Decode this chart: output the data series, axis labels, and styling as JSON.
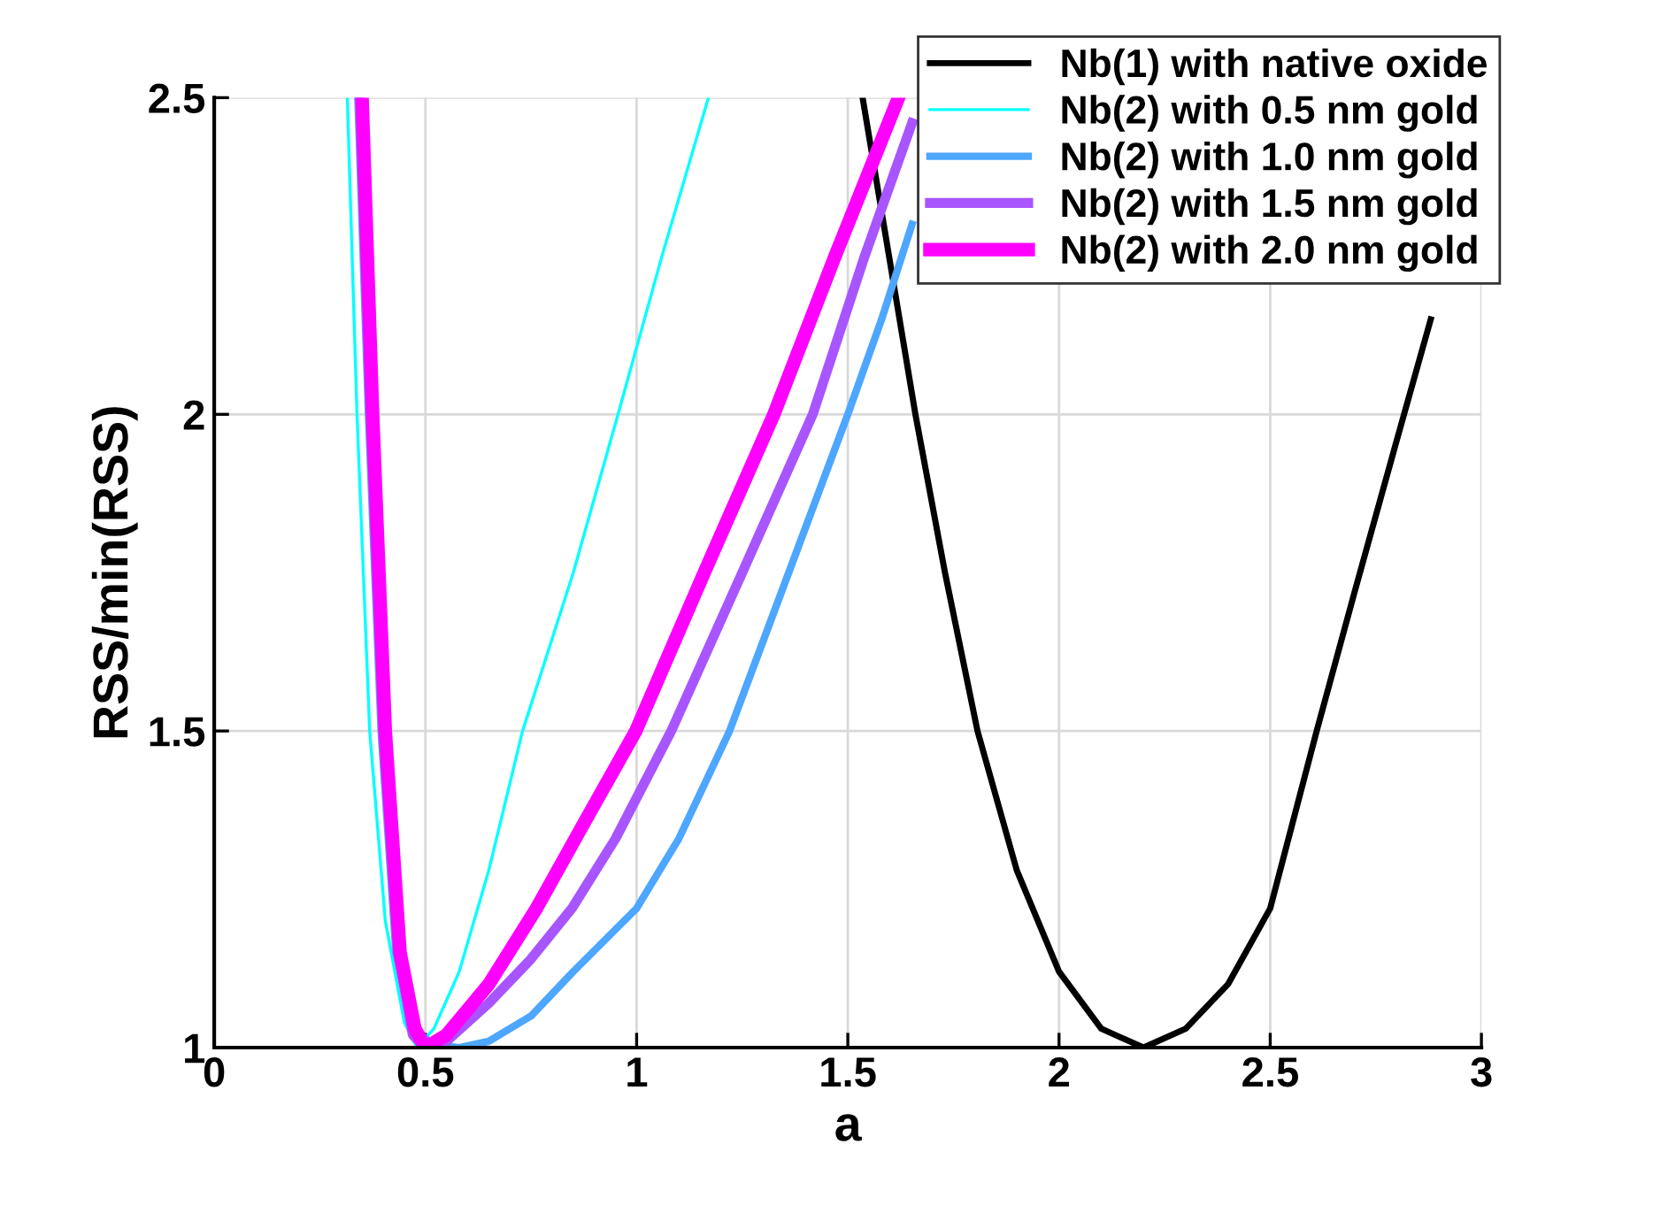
{
  "chart_data": {
    "type": "line",
    "xlabel": "a",
    "ylabel": "RSS/min(RSS)",
    "xlim": [
      0,
      3
    ],
    "ylim": [
      1,
      2.5
    ],
    "xticks": [
      0,
      0.5,
      1,
      1.5,
      2,
      2.5,
      3
    ],
    "yticks": [
      1,
      1.5,
      2,
      2.5
    ],
    "grid": true,
    "legend": "top right",
    "series": [
      {
        "name": "Nb(1) with native oxide",
        "color": "#000000",
        "x": [
          1.535,
          1.6,
          1.66,
          1.73,
          1.807,
          1.9,
          2.0,
          2.1,
          2.2,
          2.3,
          2.4,
          2.5,
          2.61,
          2.7,
          2.8,
          2.88
        ],
        "values": [
          2.5,
          2.24,
          2.0,
          1.75,
          1.5,
          1.28,
          1.12,
          1.03,
          1.0,
          1.03,
          1.1,
          1.22,
          1.5,
          1.72,
          1.96,
          2.15
        ]
      },
      {
        "name": "Nb(2) with 0.5 nm gold",
        "color": "#00ffff",
        "x": [
          0.315,
          0.338,
          0.368,
          0.405,
          0.45,
          0.48,
          0.52,
          0.58,
          0.65,
          0.73,
          0.85,
          0.956,
          1.06,
          1.17
        ],
        "values": [
          2.5,
          2.0,
          1.5,
          1.2,
          1.04,
          1.0,
          1.03,
          1.12,
          1.28,
          1.5,
          1.75,
          2.0,
          2.25,
          2.5
        ]
      },
      {
        "name": "Nb(2) with 1.0 nm gold",
        "color": "#4da6ff",
        "x": [
          0.34,
          0.365,
          0.395,
          0.43,
          0.47,
          0.52,
          0.58,
          0.65,
          0.75,
          0.85,
          1.0,
          1.1,
          1.22,
          1.36,
          1.5,
          1.58,
          1.652
        ],
        "values": [
          2.5,
          2.0,
          1.5,
          1.15,
          1.03,
          1.005,
          1.0,
          1.01,
          1.05,
          1.12,
          1.22,
          1.33,
          1.5,
          1.75,
          2.0,
          2.15,
          2.3
        ]
      },
      {
        "name": "Nb(2) with 1.5 nm gold",
        "color": "#a855ff",
        "x": [
          0.345,
          0.37,
          0.4,
          0.435,
          0.47,
          0.5,
          0.55,
          0.65,
          0.75,
          0.847,
          0.95,
          1.082,
          1.25,
          1.417,
          1.54,
          1.652
        ],
        "values": [
          2.5,
          2.0,
          1.5,
          1.15,
          1.02,
          1.0,
          1.01,
          1.07,
          1.14,
          1.22,
          1.33,
          1.5,
          1.75,
          2.0,
          2.25,
          2.46
        ]
      },
      {
        "name": "Nb(2) with 2.0 nm gold",
        "color": "#ff00ff",
        "x": [
          0.35,
          0.375,
          0.405,
          0.44,
          0.475,
          0.5,
          0.55,
          0.65,
          0.763,
          0.88,
          0.998,
          1.16,
          1.325,
          1.47,
          1.62
        ],
        "values": [
          2.5,
          2.0,
          1.5,
          1.15,
          1.03,
          1.0,
          1.02,
          1.1,
          1.22,
          1.36,
          1.5,
          1.75,
          2.0,
          2.25,
          2.5
        ]
      }
    ]
  }
}
